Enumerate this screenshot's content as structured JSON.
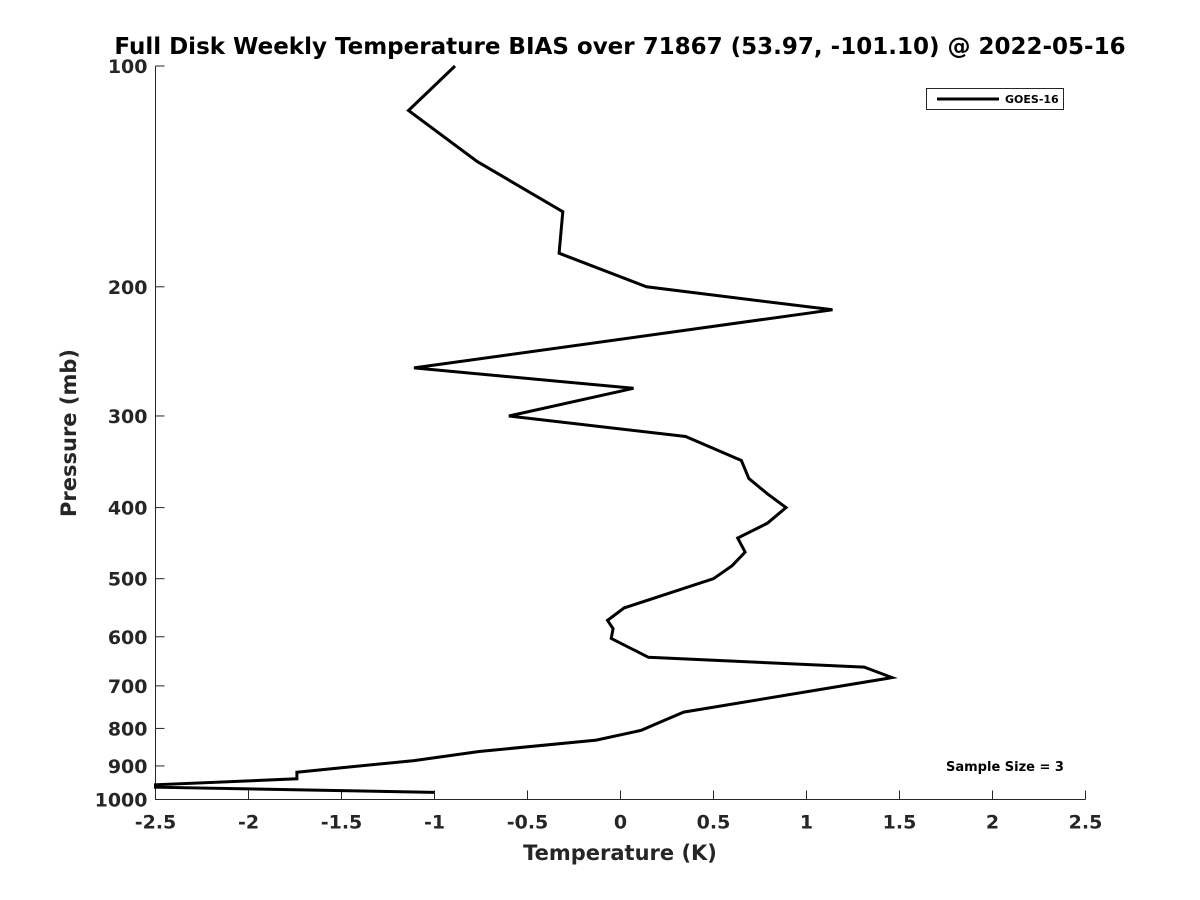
{
  "chart_data": {
    "type": "line",
    "title": "Full Disk Weekly Temperature BIAS over 71867 (53.97, -101.10) @ 2022-05-16",
    "xlabel": "Temperature (K)",
    "ylabel": "Pressure (mb)",
    "xlim": [
      -2.5,
      2.5
    ],
    "ylim": [
      100,
      1000
    ],
    "yscale": "log",
    "yreversed": true,
    "xticks": [
      -2.5,
      -2,
      -1.5,
      -1,
      -0.5,
      0,
      0.5,
      1,
      1.5,
      2,
      2.5
    ],
    "xtick_labels": [
      "-2.5",
      "-2",
      "-1.5",
      "-1",
      "-0.5",
      "0",
      "0.5",
      "1",
      "1.5",
      "2",
      "2.5"
    ],
    "yticks": [
      100,
      200,
      300,
      400,
      500,
      600,
      700,
      800,
      900,
      1000
    ],
    "ytick_labels": [
      "100",
      "200",
      "300",
      "400",
      "500",
      "600",
      "700",
      "800",
      "900",
      "1000"
    ],
    "grid": false,
    "legend_position": "top-right",
    "annotation": "Sample Size = 3",
    "series": [
      {
        "name": "GOES-16",
        "color": "#000000",
        "points": [
          [
            -0.89,
            100
          ],
          [
            -1.14,
            115
          ],
          [
            -0.77,
            135
          ],
          [
            -0.31,
            158
          ],
          [
            -0.33,
            180
          ],
          [
            0.14,
            200
          ],
          [
            1.14,
            215
          ],
          [
            -1.11,
            258
          ],
          [
            0.07,
            275
          ],
          [
            -0.6,
            300
          ],
          [
            0.35,
            320
          ],
          [
            0.65,
            345
          ],
          [
            0.69,
            365
          ],
          [
            0.79,
            383
          ],
          [
            0.89,
            400
          ],
          [
            0.79,
            420
          ],
          [
            0.63,
            440
          ],
          [
            0.67,
            460
          ],
          [
            0.6,
            480
          ],
          [
            0.5,
            500
          ],
          [
            0.02,
            548
          ],
          [
            -0.07,
            570
          ],
          [
            -0.04,
            585
          ],
          [
            -0.05,
            603
          ],
          [
            0.15,
            640
          ],
          [
            1.31,
            660
          ],
          [
            1.46,
            682
          ],
          [
            0.34,
            760
          ],
          [
            0.21,
            785
          ],
          [
            0.11,
            805
          ],
          [
            -0.13,
            830
          ],
          [
            -0.76,
            860
          ],
          [
            -1.11,
            885
          ],
          [
            -1.5,
            905
          ],
          [
            -1.74,
            918
          ],
          [
            -1.74,
            937
          ],
          [
            -2.5,
            955
          ],
          [
            -2.5,
            962
          ],
          [
            -1.0,
            978
          ]
        ]
      }
    ]
  }
}
